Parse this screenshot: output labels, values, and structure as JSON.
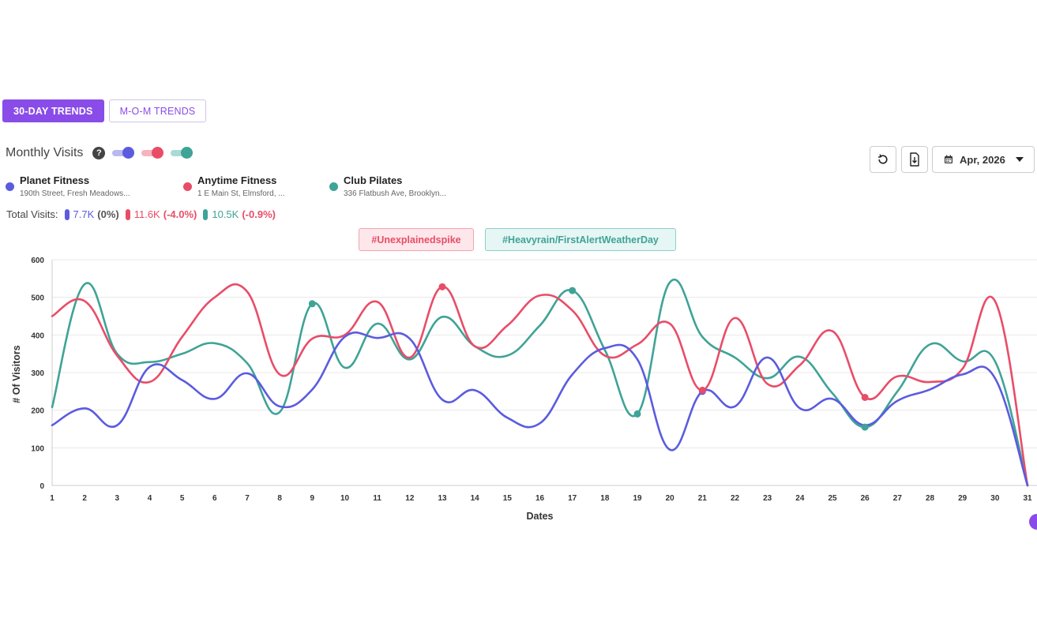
{
  "tabs": [
    {
      "label": "30-DAY TRENDS",
      "active": true
    },
    {
      "label": "M-O-M TRENDS",
      "active": false
    }
  ],
  "section": {
    "title": "Monthly Visits",
    "help_icon": "?"
  },
  "toggles": [
    {
      "icon": "toggle-on-icon",
      "color": "#5b5be0"
    },
    {
      "icon": "toggle-on-icon",
      "color": "#e84d68"
    },
    {
      "icon": "toggle-on-icon",
      "color": "#3fa397"
    }
  ],
  "legend": [
    {
      "name": "Planet Fitness",
      "address": "190th Street, Fresh Meadows...",
      "color": "#5b5be0"
    },
    {
      "name": "Anytime Fitness",
      "address": "1 E Main St, Elmsford, ...",
      "color": "#e84d68"
    },
    {
      "name": "Club Pilates",
      "address": "336 Flatbush Ave, Brooklyn...",
      "color": "#3fa397"
    }
  ],
  "totals": {
    "label": "Total Visits:",
    "items": [
      {
        "value": "7.7K",
        "pct": "(0%)",
        "color": "#5b5be0",
        "pct_color": "#555555"
      },
      {
        "value": "11.6K",
        "pct": "(-4.0%)",
        "color": "#e84d68",
        "pct_color": "#e84d68"
      },
      {
        "value": "10.5K",
        "pct": "(-0.9%)",
        "color": "#3fa397",
        "pct_color": "#e84d68"
      }
    ]
  },
  "event_tags": [
    {
      "label": "#Unexplainedspike",
      "color": "#e84d68"
    },
    {
      "label": "#Heavyrain/FirstAlertWeatherDay",
      "color": "#3fa397"
    }
  ],
  "toolbar": {
    "reset_icon": "reset-icon",
    "download_icon": "download-icon",
    "calendar_icon": "calendar-icon",
    "date_label": "Apr, 2026"
  },
  "chart_data": {
    "type": "line",
    "xlabel": "Dates",
    "ylabel": "# Of Visitors",
    "ylim": [
      0,
      600
    ],
    "yticks": [
      0,
      100,
      200,
      300,
      400,
      500,
      600
    ],
    "grid": true,
    "x": [
      1,
      2,
      3,
      4,
      5,
      6,
      7,
      8,
      9,
      10,
      11,
      12,
      13,
      14,
      15,
      16,
      17,
      18,
      19,
      20,
      21,
      22,
      23,
      24,
      25,
      26,
      27,
      28,
      29,
      30,
      31
    ],
    "series": [
      {
        "name": "Planet Fitness",
        "color": "#5b5be0",
        "values": [
          160,
          205,
          160,
          315,
          280,
          230,
          298,
          210,
          255,
          395,
          392,
          390,
          228,
          253,
          180,
          165,
          295,
          365,
          335,
          95,
          250,
          210,
          340,
          205,
          230,
          160,
          225,
          255,
          295,
          285,
          0
        ]
      },
      {
        "name": "Anytime Fitness",
        "color": "#e84d68",
        "values": [
          450,
          490,
          345,
          275,
          395,
          500,
          515,
          295,
          390,
          400,
          488,
          340,
          528,
          370,
          425,
          505,
          465,
          345,
          375,
          430,
          253,
          445,
          270,
          320,
          410,
          234,
          290,
          275,
          310,
          490,
          0
        ]
      },
      {
        "name": "Club Pilates",
        "color": "#3fa397",
        "values": [
          208,
          535,
          350,
          328,
          350,
          378,
          325,
          195,
          483,
          313,
          430,
          335,
          448,
          370,
          345,
          425,
          518,
          360,
          190,
          540,
          395,
          340,
          285,
          342,
          245,
          155,
          250,
          375,
          330,
          330,
          0
        ]
      }
    ],
    "markers": [
      {
        "series": 2,
        "x": 9
      },
      {
        "series": 1,
        "x": 13
      },
      {
        "series": 2,
        "x": 17
      },
      {
        "series": 2,
        "x": 19
      },
      {
        "series": 0,
        "x": 21
      },
      {
        "series": 1,
        "x": 21
      },
      {
        "series": 1,
        "x": 26
      },
      {
        "series": 2,
        "x": 26
      }
    ]
  }
}
